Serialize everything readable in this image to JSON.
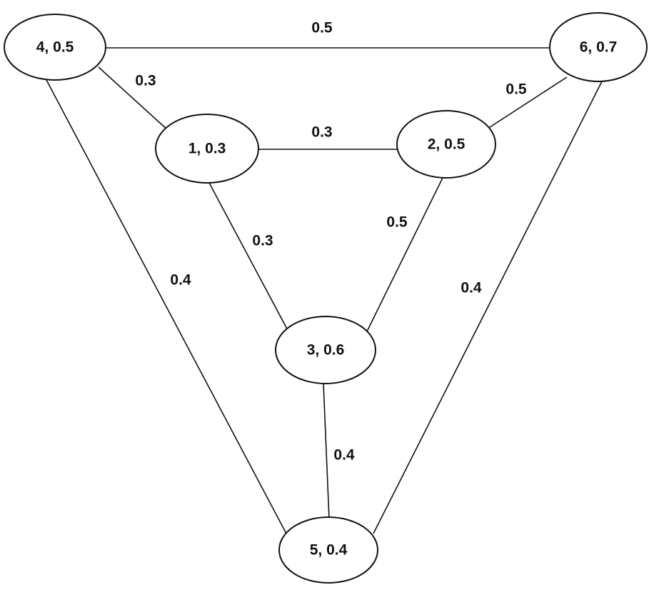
{
  "diagram": {
    "nodes": [
      {
        "id": "4",
        "label": "4, 0.5"
      },
      {
        "id": "6",
        "label": "6, 0.7"
      },
      {
        "id": "1",
        "label": "1, 0.3"
      },
      {
        "id": "2",
        "label": "2, 0.5"
      },
      {
        "id": "3",
        "label": "3, 0.6"
      },
      {
        "id": "5",
        "label": "5, 0.4"
      }
    ],
    "edges": [
      {
        "from": "4",
        "to": "6",
        "label": "0.5"
      },
      {
        "from": "4",
        "to": "1",
        "label": "0.3"
      },
      {
        "from": "6",
        "to": "2",
        "label": "0.5"
      },
      {
        "from": "1",
        "to": "2",
        "label": "0.3"
      },
      {
        "from": "1",
        "to": "3",
        "label": "0.3"
      },
      {
        "from": "2",
        "to": "3",
        "label": "0.5"
      },
      {
        "from": "4",
        "to": "5",
        "label": "0.4"
      },
      {
        "from": "6",
        "to": "5",
        "label": "0.4"
      },
      {
        "from": "3",
        "to": "5",
        "label": "0.4"
      }
    ]
  }
}
